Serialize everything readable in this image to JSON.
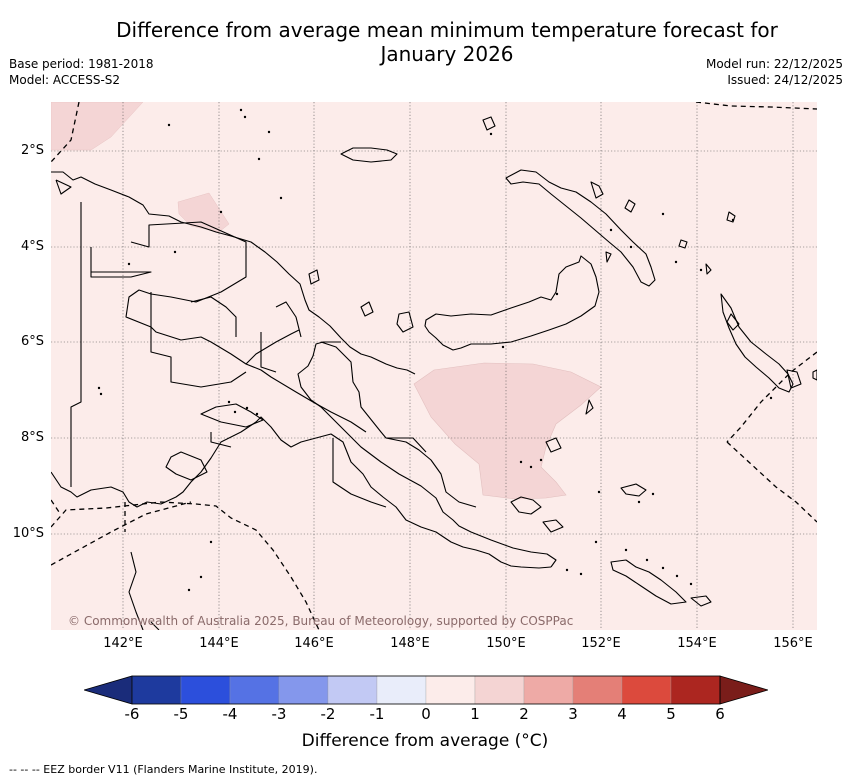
{
  "title_line1": "Difference from average mean minimum temperature forecast for",
  "title_line2": "January 2026",
  "base_period": "Base period: 1981-2018",
  "model": "Model: ACCESS-S2",
  "model_run": "Model run: 22/12/2025",
  "issued": "Issued: 24/12/2025",
  "map": {
    "lon_range": [
      140.5,
      156.5
    ],
    "lat_range": [
      -12.0,
      -1.0
    ],
    "lat_ticks": [
      "2°S",
      "4°S",
      "6°S",
      "8°S",
      "10°S"
    ],
    "lon_ticks": [
      "142°E",
      "144°E",
      "146°E",
      "148°E",
      "150°E",
      "152°E",
      "154°E",
      "156°E"
    ],
    "background_anomaly_class": "0 to 1",
    "background_color": "#fcecea",
    "patch_anomaly_class": "1 to 2",
    "patch_color": "#f4d5d5"
  },
  "copyright": "© Commonwealth of Australia 2025, Bureau of Meteorology, supported by COSPPac",
  "colorbar": {
    "labels": [
      "-6",
      "-5",
      "-4",
      "-3",
      "-2",
      "-1",
      "0",
      "1",
      "2",
      "3",
      "4",
      "5",
      "6"
    ],
    "colors": [
      "#1e3a9e",
      "#2c4fdc",
      "#5572e4",
      "#8497ec",
      "#c2c9f4",
      "#e9edfa",
      "#fcecea",
      "#f4d4d3",
      "#eeaaa6",
      "#e47f77",
      "#dc4a3d",
      "#ac2620"
    ],
    "under_color": "#1a2c7a",
    "over_color": "#7a1d1a",
    "label": "Difference from average (°C)"
  },
  "footnote": "-- -- -- EEZ border V11 (Flanders Marine Institute, 2019)."
}
